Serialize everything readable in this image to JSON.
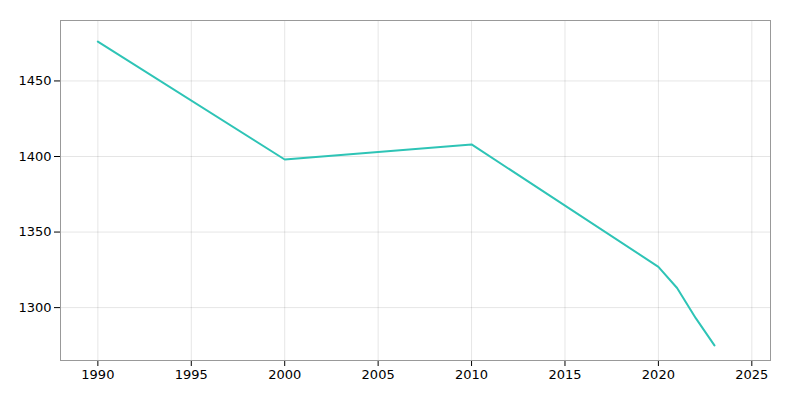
{
  "chart_data": {
    "type": "line",
    "x": [
      1990,
      2000,
      2005,
      2010,
      2020,
      2021,
      2022,
      2023
    ],
    "values": [
      1476,
      1398,
      1403,
      1408,
      1327,
      1313,
      1293,
      1275
    ],
    "color": "#2ec4b6",
    "xlim": [
      1988,
      2026
    ],
    "ylim": [
      1265,
      1490
    ],
    "xticks": [
      1990,
      1995,
      2000,
      2005,
      2010,
      2015,
      2020,
      2025
    ],
    "yticks": [
      1300,
      1350,
      1400,
      1450
    ],
    "grid": true
  }
}
